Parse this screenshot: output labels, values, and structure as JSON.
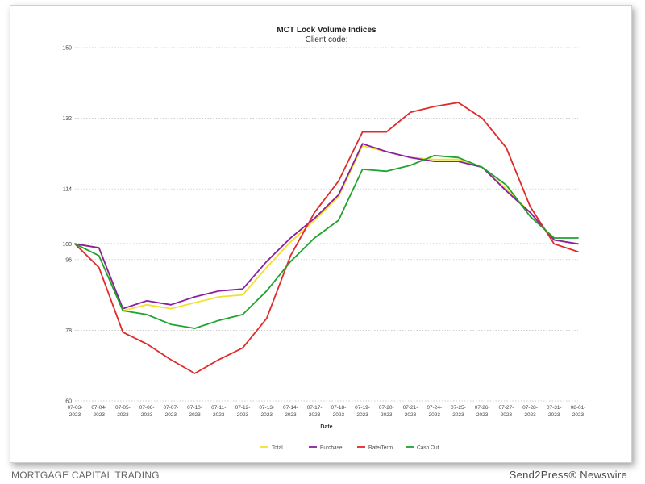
{
  "chart_data": {
    "type": "line",
    "title": "MCT Lock Volume Indices",
    "subtitle": "Client code:",
    "xlabel": "Date",
    "ylabel": "",
    "ylim": [
      60,
      150
    ],
    "yticks": [
      60,
      78,
      96,
      100,
      114,
      132,
      150
    ],
    "reference_line": 100,
    "grid": true,
    "legend_position": "bottom",
    "categories": [
      "07-03-2023",
      "07-04-2023",
      "07-05-2023",
      "07-06-2023",
      "07-07-2023",
      "07-10-2023",
      "07-11-2023",
      "07-12-2023",
      "07-13-2023",
      "07-14-2023",
      "07-17-2023",
      "07-18-2023",
      "07-19-2023",
      "07-20-2023",
      "07-21-2023",
      "07-24-2023",
      "07-25-2023",
      "07-26-2023",
      "07-27-2023",
      "07-28-2023",
      "07-31-2023",
      "08-01-2023"
    ],
    "series": [
      {
        "name": "Total",
        "color": "#f2e12a",
        "values": [
          100,
          99,
          83,
          84.5,
          83.5,
          85,
          86.5,
          87,
          94,
          100.5,
          106,
          112,
          125,
          123.5,
          122,
          121.5,
          121.5,
          119.5,
          114,
          108,
          101,
          100
        ]
      },
      {
        "name": "Purchase",
        "color": "#8b1fa3",
        "values": [
          100,
          99,
          83.5,
          85.5,
          84.5,
          86.5,
          88,
          88.5,
          95.5,
          101.5,
          106.5,
          112.5,
          125.5,
          123.5,
          122,
          121,
          121,
          119.5,
          113.5,
          108,
          101,
          100
        ]
      },
      {
        "name": "Rate/Term",
        "color": "#e02a2a",
        "values": [
          100,
          94,
          77.5,
          74.5,
          70.5,
          67,
          70.5,
          73.5,
          81,
          97,
          108,
          116,
          128.5,
          128.5,
          133.5,
          135,
          136,
          132,
          124.5,
          109.5,
          100,
          98
        ]
      },
      {
        "name": "Cash Out",
        "color": "#1fa32e",
        "values": [
          100,
          97,
          83,
          82,
          79.5,
          78.5,
          80.5,
          82,
          88,
          95.5,
          101.5,
          106,
          119,
          118.5,
          120,
          122.5,
          122,
          119.5,
          115,
          107,
          101.5,
          101.5
        ]
      }
    ]
  },
  "footer": {
    "left_text": "MORTGAGE CAPITAL TRADING",
    "right_text": "Send2Press® Newswire"
  }
}
